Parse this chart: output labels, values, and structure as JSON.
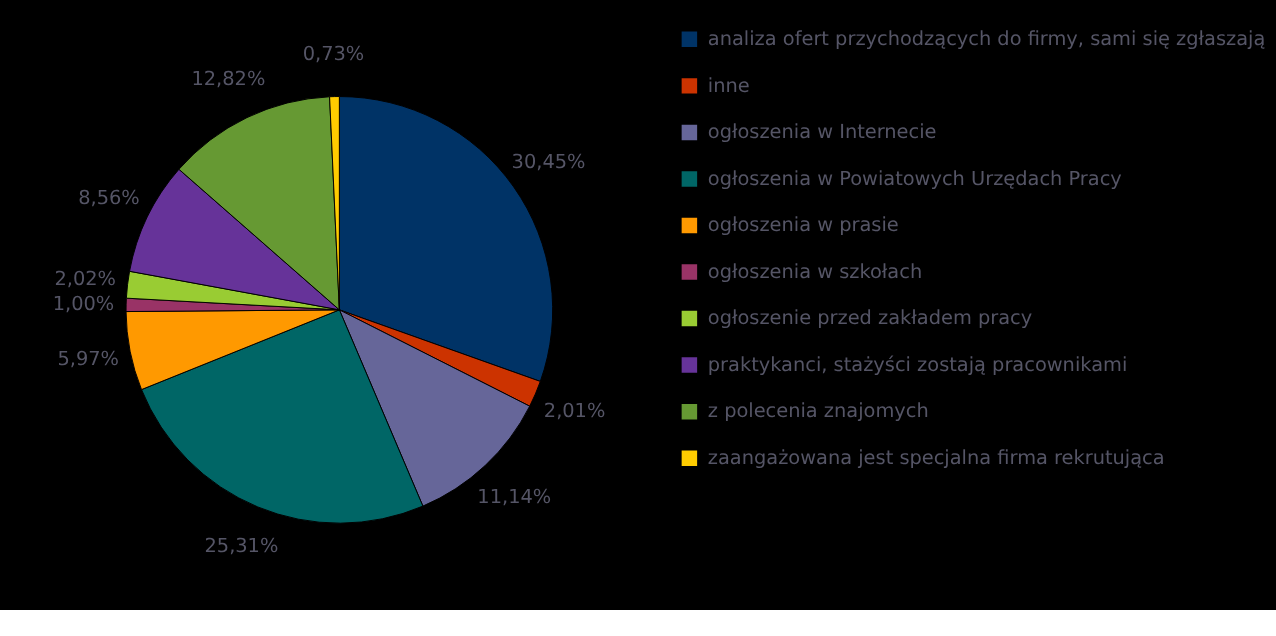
{
  "chart_data": {
    "type": "pie",
    "categories": [
      "analiza ofert przychodzących do firmy, sami się zgłaszają",
      "inne",
      "ogłoszenia w Internecie",
      "ogłoszenia w Powiatowych Urzędach Pracy",
      "ogłoszenia w prasie",
      "ogłoszenia w szkołach",
      "ogłoszenie przed zakładem pracy",
      "praktykanci, stażyści zostają pracownikami",
      "z polecenia znajomych",
      "zaangażowana jest specjalna firma rekrutująca"
    ],
    "values": [
      30.45,
      2.01,
      11.14,
      25.31,
      5.97,
      1.0,
      2.02,
      8.56,
      12.82,
      0.73
    ],
    "value_labels": [
      "30,45%",
      "2,01%",
      "11,14%",
      "25,31%",
      "5,97%",
      "1,00%",
      "2,02%",
      "8,56%",
      "12,82%",
      "0,73%"
    ],
    "colors": [
      "#003366",
      "#cc3300",
      "#666699",
      "#006666",
      "#ff9900",
      "#993366",
      "#99cc33",
      "#663399",
      "#669933",
      "#ffcc00"
    ],
    "legend": "right"
  }
}
